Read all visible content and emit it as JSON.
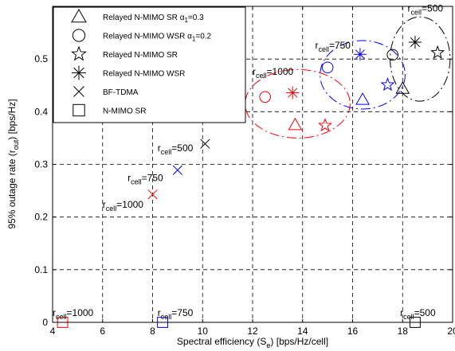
{
  "chart_data": {
    "type": "scatter",
    "xlabel": "Spectral efficiency (S",
    "xlabel_sub": "e",
    "xlabel_tail": ") [bps/Hz/cell]",
    "ylabel": "95% outage rate  (r",
    "ylabel_sub": "out",
    "ylabel_tail": ") [bps/Hz]",
    "xlim": [
      4,
      20
    ],
    "ylim": [
      0,
      0.6
    ],
    "xticks": [
      4,
      6,
      8,
      10,
      12,
      14,
      16,
      18,
      20
    ],
    "yticks": [
      0,
      0.1,
      0.2,
      0.3,
      0.4,
      0.5
    ],
    "yticklabels": [
      "0",
      "0.1",
      "0.2",
      "0.3",
      "0.4",
      "0.5"
    ],
    "grid": true,
    "legend_position": "top-left",
    "colors": {
      "r1000": "#ff0000",
      "r750": "#0000ff",
      "r500": "#000000"
    },
    "legend": [
      {
        "marker": "triangle",
        "label": "Relayed N-MIMO SR ",
        "greek": "α",
        "sub": "1",
        "tail": "=0.3"
      },
      {
        "marker": "circle",
        "label": "Relayed N-MIMO WSR ",
        "greek": "α",
        "sub": "1",
        "tail": "=0.2"
      },
      {
        "marker": "star",
        "label": "Relayed N-MIMO SR"
      },
      {
        "marker": "asterisk",
        "label": "Relayed N-MIMO WSR"
      },
      {
        "marker": "x",
        "label": "BF-TDMA"
      },
      {
        "marker": "square",
        "label": "N-MIMO SR"
      }
    ],
    "series": [
      {
        "name": "Relayed N-MIMO SR α1=0.3",
        "marker": "triangle",
        "points": [
          {
            "x": 13.7,
            "y": 0.375,
            "color": "#ff0000"
          },
          {
            "x": 16.4,
            "y": 0.423,
            "color": "#0000ff"
          },
          {
            "x": 18.0,
            "y": 0.444,
            "color": "#000000"
          }
        ]
      },
      {
        "name": "Relayed N-MIMO WSR α1=0.2",
        "marker": "circle",
        "points": [
          {
            "x": 12.5,
            "y": 0.428,
            "color": "#ff0000"
          },
          {
            "x": 15.0,
            "y": 0.484,
            "color": "#0000ff"
          },
          {
            "x": 17.6,
            "y": 0.508,
            "color": "#000000"
          }
        ]
      },
      {
        "name": "Relayed N-MIMO SR",
        "marker": "star",
        "points": [
          {
            "x": 14.9,
            "y": 0.374,
            "color": "#ff0000"
          },
          {
            "x": 17.4,
            "y": 0.451,
            "color": "#0000ff"
          },
          {
            "x": 19.4,
            "y": 0.512,
            "color": "#000000"
          }
        ]
      },
      {
        "name": "Relayed N-MIMO WSR",
        "marker": "asterisk",
        "points": [
          {
            "x": 13.6,
            "y": 0.436,
            "color": "#ff0000"
          },
          {
            "x": 16.3,
            "y": 0.509,
            "color": "#0000ff"
          },
          {
            "x": 18.5,
            "y": 0.532,
            "color": "#000000"
          }
        ]
      },
      {
        "name": "BF-TDMA",
        "marker": "x",
        "points": [
          {
            "x": 8.0,
            "y": 0.243,
            "color": "#ff0000"
          },
          {
            "x": 9.0,
            "y": 0.289,
            "color": "#0000ff"
          },
          {
            "x": 10.1,
            "y": 0.339,
            "color": "#000000"
          }
        ]
      },
      {
        "name": "N-MIMO SR",
        "marker": "square",
        "points": [
          {
            "x": 4.4,
            "y": 0.0,
            "color": "#ff0000"
          },
          {
            "x": 8.4,
            "y": 0.0,
            "color": "#0000ff"
          },
          {
            "x": 18.5,
            "y": 0.0,
            "color": "#000000"
          }
        ]
      }
    ],
    "ellipses": [
      {
        "cx": 13.8,
        "cy": 0.415,
        "rx": 2.1,
        "ry": 0.065,
        "color": "#ff0000"
      },
      {
        "cx": 16.4,
        "cy": 0.47,
        "rx": 1.7,
        "ry": 0.065,
        "color": "#0000ff"
      },
      {
        "cx": 18.7,
        "cy": 0.5,
        "rx": 1.2,
        "ry": 0.08,
        "color": "#000000"
      }
    ],
    "annotations": [
      {
        "main": "r",
        "sub": "cell",
        "tail": "=1000",
        "x": 4.0,
        "y": 0.012
      },
      {
        "main": "r",
        "sub": "cell",
        "tail": "=750",
        "x": 8.2,
        "y": 0.012
      },
      {
        "main": "r",
        "sub": "cell",
        "tail": "=500",
        "x": 17.9,
        "y": 0.012
      },
      {
        "main": "r",
        "sub": "cell",
        "tail": "=1000",
        "x": 6.0,
        "y": 0.218
      },
      {
        "main": "r",
        "sub": "cell",
        "tail": "=750",
        "x": 7.0,
        "y": 0.268
      },
      {
        "main": "r",
        "sub": "cell",
        "tail": "=500",
        "x": 8.2,
        "y": 0.325
      },
      {
        "main": "r",
        "sub": "cell",
        "tail": "=1000",
        "x": 12.0,
        "y": 0.47
      },
      {
        "main": "r",
        "sub": "cell",
        "tail": "=750",
        "x": 14.5,
        "y": 0.52
      },
      {
        "main": "r",
        "sub": "cell",
        "tail": "=500",
        "x": 18.2,
        "y": 0.59
      }
    ]
  }
}
